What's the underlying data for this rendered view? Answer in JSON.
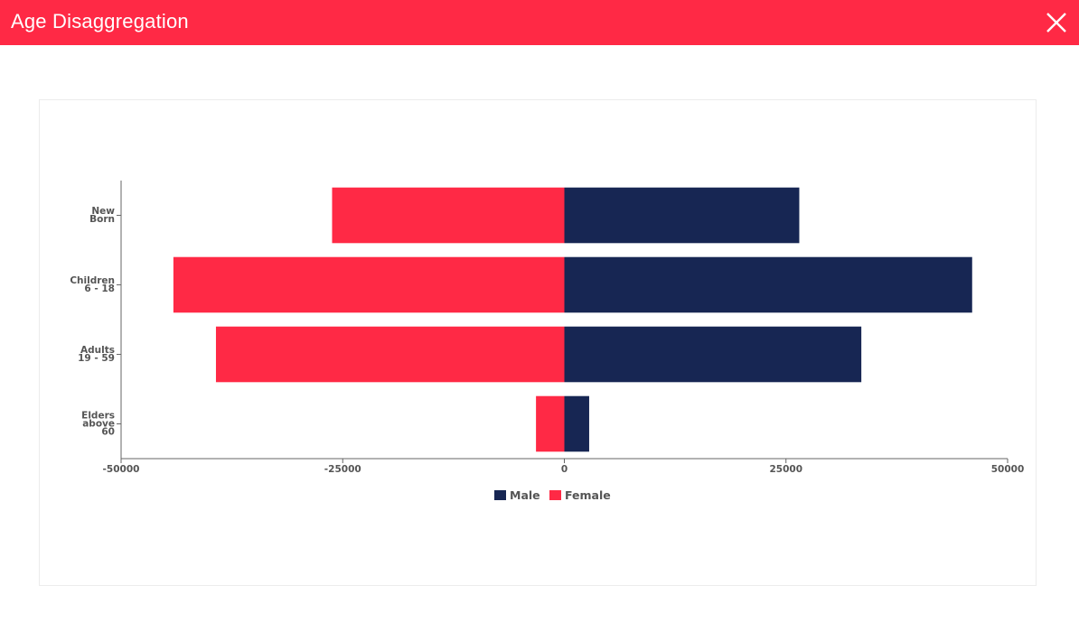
{
  "header": {
    "title": "Age Disaggregation",
    "close_icon": "close-icon"
  },
  "colors": {
    "header_bg": "#ff2945",
    "male": "#172653",
    "female": "#ff2945"
  },
  "chart_data": {
    "type": "bar",
    "orientation": "horizontal",
    "stacked": "diverging",
    "categories": [
      [
        "New",
        "Born"
      ],
      [
        "Children",
        "6 - 18"
      ],
      [
        "Adults",
        "19 - 59"
      ],
      [
        "Elders",
        "above",
        "60"
      ]
    ],
    "series": [
      {
        "name": "Male",
        "color": "#172653",
        "values": [
          26500,
          46000,
          33500,
          2800
        ]
      },
      {
        "name": "Female",
        "color": "#ff2945",
        "values": [
          -26200,
          -44100,
          -39300,
          -3200
        ]
      }
    ],
    "xlim": [
      -50000,
      50000
    ],
    "xticks": [
      -50000,
      -25000,
      0,
      25000,
      50000
    ],
    "xtick_labels": [
      "-50000",
      "-25000",
      "0",
      "25000",
      "50000"
    ],
    "grid": false,
    "legend_position": "bottom-center"
  }
}
